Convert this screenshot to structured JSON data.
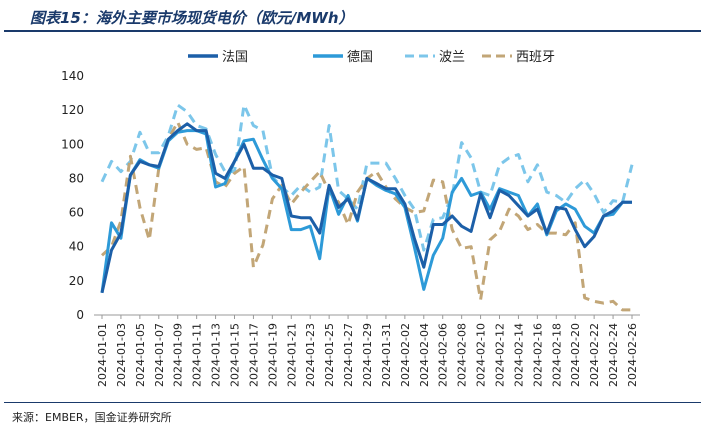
{
  "figure": {
    "title": "图表15：海外主要市场现货电价（欧元/MWh）",
    "source": "来源：EMBER，国金证券研究所"
  },
  "chart_data": {
    "type": "line",
    "ylim": [
      0,
      140
    ],
    "yticks": [
      0,
      20,
      40,
      60,
      80,
      100,
      120,
      140
    ],
    "grid": false,
    "legend_position": "top",
    "x_tick_labels": [
      "2024-01-01",
      "2024-01-03",
      "2024-01-05",
      "2024-01-07",
      "2024-01-09",
      "2024-01-11",
      "2024-01-13",
      "2024-01-15",
      "2024-01-17",
      "2024-01-19",
      "2024-01-21",
      "2024-01-23",
      "2024-01-25",
      "2024-01-27",
      "2024-01-29",
      "2024-01-31",
      "2024-02-02",
      "2024-02-04",
      "2024-02-06",
      "2024-02-08",
      "2024-02-10",
      "2024-02-12",
      "2024-02-14",
      "2024-02-16",
      "2024-02-18",
      "2024-02-20",
      "2024-02-22",
      "2024-02-24",
      "2024-02-26"
    ],
    "x": [
      "2024-01-01",
      "2024-01-02",
      "2024-01-03",
      "2024-01-04",
      "2024-01-05",
      "2024-01-06",
      "2024-01-07",
      "2024-01-08",
      "2024-01-09",
      "2024-01-10",
      "2024-01-11",
      "2024-01-12",
      "2024-01-13",
      "2024-01-14",
      "2024-01-15",
      "2024-01-16",
      "2024-01-17",
      "2024-01-18",
      "2024-01-19",
      "2024-01-20",
      "2024-01-21",
      "2024-01-22",
      "2024-01-23",
      "2024-01-24",
      "2024-01-25",
      "2024-01-26",
      "2024-01-27",
      "2024-01-28",
      "2024-01-29",
      "2024-01-30",
      "2024-01-31",
      "2024-02-01",
      "2024-02-02",
      "2024-02-03",
      "2024-02-04",
      "2024-02-05",
      "2024-02-06",
      "2024-02-07",
      "2024-02-08",
      "2024-02-09",
      "2024-02-10",
      "2024-02-11",
      "2024-02-12",
      "2024-02-13",
      "2024-02-14",
      "2024-02-15",
      "2024-02-16",
      "2024-02-17",
      "2024-02-18",
      "2024-02-19",
      "2024-02-20",
      "2024-02-21",
      "2024-02-22",
      "2024-02-23",
      "2024-02-24",
      "2024-02-25",
      "2024-02-26"
    ],
    "series": [
      {
        "name": "法国",
        "color": "#1c5fa8",
        "dash": "solid",
        "values": [
          13,
          38,
          48,
          82,
          90,
          88,
          87,
          103,
          108,
          112,
          108,
          108,
          83,
          80,
          90,
          100,
          86,
          86,
          82,
          80,
          58,
          57,
          57,
          48,
          76,
          63,
          68,
          56,
          80,
          77,
          74,
          74,
          65,
          45,
          28,
          53,
          53,
          58,
          52,
          49,
          71,
          57,
          73,
          70,
          64,
          58,
          62,
          48,
          63,
          62,
          50,
          40,
          46,
          58,
          61,
          66,
          66
        ]
      },
      {
        "name": "德国",
        "color": "#2d9ad8",
        "dash": "solid",
        "values": [
          13,
          54,
          45,
          82,
          91,
          88,
          86,
          102,
          107,
          108,
          108,
          106,
          75,
          77,
          90,
          102,
          103,
          91,
          80,
          74,
          50,
          50,
          52,
          33,
          75,
          59,
          70,
          55,
          80,
          76,
          73,
          71,
          63,
          40,
          15,
          35,
          45,
          72,
          80,
          70,
          72,
          62,
          74,
          72,
          70,
          58,
          65,
          47,
          61,
          65,
          62,
          52,
          48,
          58,
          59,
          66,
          66
        ]
      },
      {
        "name": "波兰",
        "color": "#7cc6ea",
        "dash": "dash",
        "values": [
          78,
          90,
          84,
          90,
          107,
          95,
          95,
          105,
          123,
          119,
          111,
          109,
          94,
          84,
          84,
          123,
          111,
          108,
          81,
          75,
          70,
          76,
          72,
          75,
          111,
          73,
          68,
          62,
          89,
          89,
          89,
          80,
          70,
          62,
          38,
          56,
          57,
          70,
          101,
          92,
          72,
          70,
          88,
          92,
          94,
          78,
          88,
          72,
          70,
          66,
          74,
          79,
          71,
          60,
          67,
          66,
          88
        ]
      },
      {
        "name": "西班牙",
        "color": "#c2a677",
        "dash": "dash",
        "values": [
          35,
          40,
          55,
          93,
          63,
          44,
          86,
          103,
          113,
          100,
          97,
          98,
          78,
          75,
          83,
          87,
          28,
          41,
          68,
          76,
          65,
          72,
          78,
          84,
          72,
          66,
          53,
          72,
          80,
          84,
          75,
          68,
          63,
          60,
          61,
          79,
          78,
          50,
          39,
          40,
          9,
          44,
          49,
          62,
          58,
          50,
          53,
          48,
          48,
          47,
          54,
          10,
          8,
          7,
          8,
          3,
          3
        ]
      }
    ]
  }
}
